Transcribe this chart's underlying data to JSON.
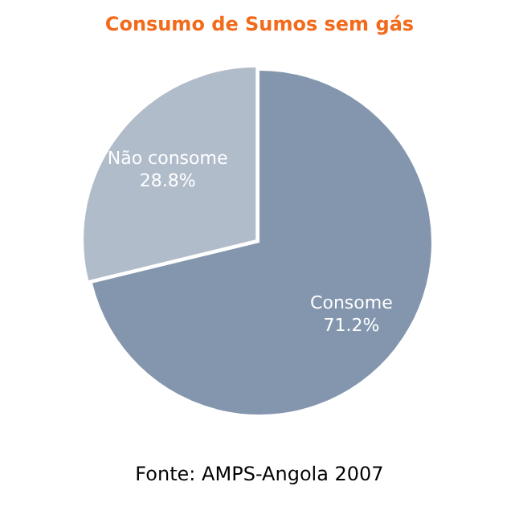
{
  "chart_data": {
    "type": "pie",
    "title": "Consumo de Sumos sem gás",
    "categories": [
      "Consome",
      "Não consome"
    ],
    "values": [
      71.2,
      28.8
    ],
    "value_labels": [
      "71.2%",
      "28.8%"
    ],
    "colors": [
      "#8396ae",
      "#b1bccb"
    ],
    "annotations": [
      "Fonte: AMPS-Angola 2007"
    ]
  }
}
